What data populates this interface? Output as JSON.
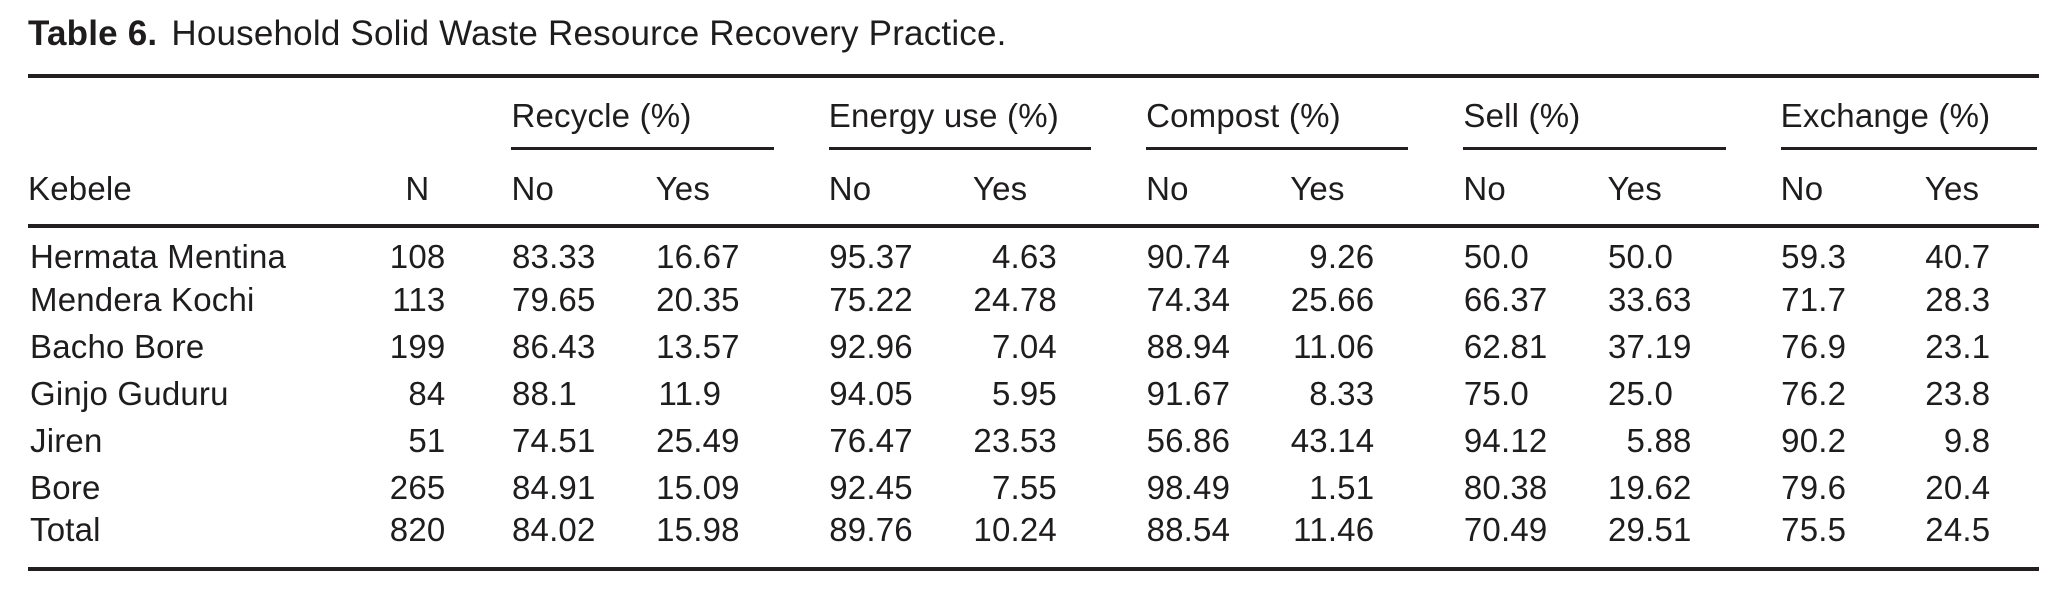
{
  "title": {
    "label": "Table 6.",
    "text": "Household Solid Waste Resource Recovery Practice."
  },
  "table": {
    "kebele_header": "Kebele",
    "n_header": "N",
    "groups": [
      {
        "label": "Recycle (%)"
      },
      {
        "label": "Energy use (%)"
      },
      {
        "label": "Compost (%)"
      },
      {
        "label": "Sell (%)"
      },
      {
        "label": "Exchange (%)"
      }
    ],
    "sub_headers": {
      "no": "No",
      "yes": "Yes"
    },
    "rows": [
      {
        "kebele": "Hermata Mentina",
        "n": "108",
        "cells": [
          "83.33",
          "16.67",
          "95.37",
          "4.63",
          "90.74",
          "9.26",
          "50.0",
          "50.0",
          "59.3",
          "40.7"
        ]
      },
      {
        "kebele": "Mendera Kochi",
        "n": "113",
        "cells": [
          "79.65",
          "20.35",
          "75.22",
          "24.78",
          "74.34",
          "25.66",
          "66.37",
          "33.63",
          "71.7",
          "28.3"
        ]
      },
      {
        "kebele": "Bacho Bore",
        "n": "199",
        "cells": [
          "86.43",
          "13.57",
          "92.96",
          "7.04",
          "88.94",
          "11.06",
          "62.81",
          "37.19",
          "76.9",
          "23.1"
        ]
      },
      {
        "kebele": "Ginjo Guduru",
        "n": "84",
        "cells": [
          "88.1",
          "11.9",
          "94.05",
          "5.95",
          "91.67",
          "8.33",
          "75.0",
          "25.0",
          "76.2",
          "23.8"
        ]
      },
      {
        "kebele": "Jiren",
        "n": "51",
        "cells": [
          "74.51",
          "25.49",
          "76.47",
          "23.53",
          "56.86",
          "43.14",
          "94.12",
          "5.88",
          "90.2",
          "9.8"
        ]
      },
      {
        "kebele": "Bore",
        "n": "265",
        "cells": [
          "84.91",
          "15.09",
          "92.45",
          "7.55",
          "98.49",
          "1.51",
          "80.38",
          "19.62",
          "79.6",
          "20.4"
        ]
      },
      {
        "kebele": "Total",
        "n": "820",
        "cells": [
          "84.02",
          "15.98",
          "89.76",
          "10.24",
          "88.54",
          "11.46",
          "70.49",
          "29.51",
          "75.5",
          "24.5"
        ]
      }
    ]
  },
  "colors": {
    "text": "#1e1c1c",
    "rule": "#231f20",
    "background": "#ffffff"
  }
}
